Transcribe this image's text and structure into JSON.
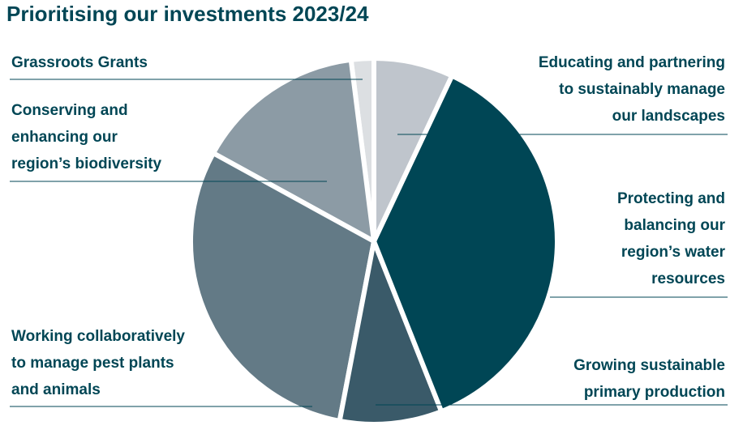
{
  "chart_data": {
    "type": "pie",
    "title": "Prioritising our investments 2023/24",
    "categories": [
      "Educating and partnering\nto sustainably manage\nour landscapes",
      "Protecting and\nbalancing our\nregion’s water\nresources",
      "Growing sustainable\nprimary production",
      "Working collaboratively\nto manage pest plants\nand animals",
      "Conserving and\nenhancing our\nregion’s biodiversity",
      "Grassroots Grants"
    ],
    "values": [
      7,
      37,
      9,
      30,
      15,
      2
    ],
    "colors": [
      "#bfc5cc",
      "#004655",
      "#3a5a69",
      "#637a86",
      "#8c9ba5",
      "#dcdfe2"
    ]
  }
}
